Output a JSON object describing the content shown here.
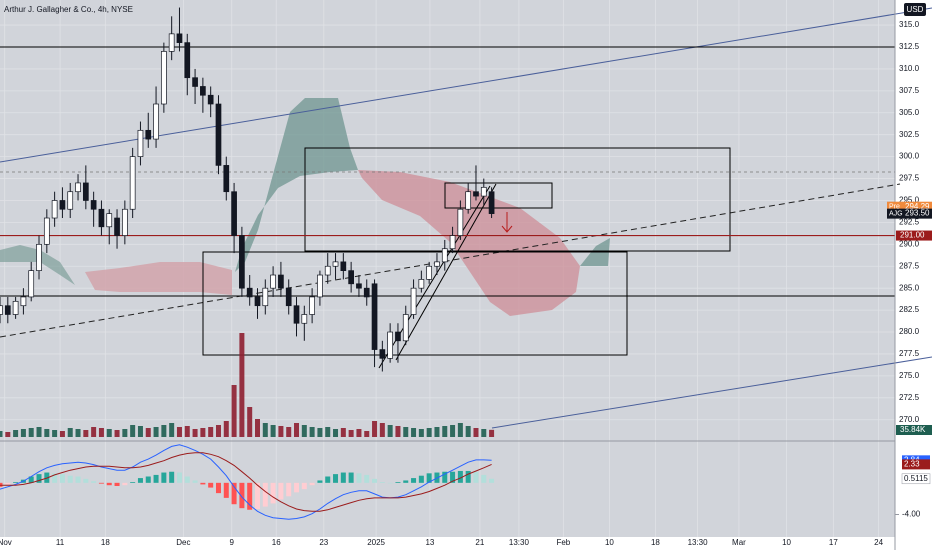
{
  "chart_data": {
    "type": "candlestick",
    "title": "Arthur J. Gallagher & Co., 4h, NYSE",
    "currency": "USD",
    "up_color": "#ffffff",
    "down_color": "#131722",
    "open": [
      282,
      283,
      282,
      283,
      284,
      287,
      290,
      293,
      295,
      294,
      296,
      297,
      295,
      294,
      292,
      293,
      291,
      294,
      300,
      303,
      302,
      306,
      312,
      314,
      313,
      309,
      308,
      307,
      306,
      299,
      296,
      291,
      285,
      284,
      283,
      285,
      286.5,
      285,
      283,
      281,
      282,
      284,
      286.5,
      287.5,
      288,
      287,
      285.5,
      285,
      285.5,
      278,
      277,
      280,
      279,
      282,
      285,
      286,
      287.5,
      288,
      289.5,
      291,
      294,
      296,
      295.5,
      296
    ],
    "high": [
      284,
      284,
      284,
      285,
      288,
      291,
      294,
      296,
      296.5,
      297,
      298,
      299,
      296,
      295,
      294,
      294,
      295,
      301,
      304,
      305,
      308,
      313,
      316,
      317,
      314,
      310,
      309,
      308,
      307,
      300,
      297,
      292,
      286.5,
      285,
      286,
      287.5,
      288,
      286,
      284,
      283,
      285,
      287,
      289,
      289,
      289,
      288,
      286.5,
      286,
      286,
      279,
      281,
      281,
      283,
      286,
      287,
      288,
      289,
      290.5,
      292,
      295,
      297,
      299,
      297.5,
      296.5
    ],
    "low": [
      281,
      281,
      281.5,
      282,
      283.5,
      286,
      289,
      292,
      293,
      293,
      295,
      294,
      292,
      291,
      290,
      289.5,
      290,
      293,
      299,
      301,
      301,
      305,
      311,
      312,
      307,
      306,
      305,
      304.5,
      298,
      295,
      289,
      284,
      283,
      281.5,
      282,
      284,
      284,
      282,
      279.5,
      279,
      281,
      283,
      285.5,
      286,
      286,
      284.5,
      284,
      283,
      276,
      275.5,
      276.5,
      276.5,
      278.5,
      281.5,
      284.5,
      285.5,
      286.5,
      287,
      289,
      290.5,
      293.5,
      295,
      294.5,
      293
    ],
    "close": [
      283,
      282,
      283.5,
      284,
      287,
      290,
      293,
      295,
      294,
      296,
      297,
      295,
      294,
      292,
      293.5,
      291,
      294,
      300,
      303,
      302,
      306,
      312,
      314,
      313,
      309,
      308,
      307,
      306,
      299,
      296,
      291,
      285,
      284,
      283,
      285,
      286.5,
      285,
      283,
      281,
      282,
      284,
      286.5,
      287.5,
      288,
      287,
      285.5,
      285,
      284,
      278,
      277,
      280,
      279,
      282,
      285,
      286,
      287.5,
      288,
      289.5,
      291,
      294,
      296,
      295.5,
      296.5,
      293.5
    ],
    "volume": [
      30,
      25,
      35,
      40,
      45,
      50,
      40,
      35,
      30,
      45,
      40,
      35,
      50,
      45,
      40,
      35,
      40,
      60,
      55,
      45,
      50,
      60,
      70,
      50,
      55,
      40,
      45,
      50,
      60,
      80,
      260,
      520,
      150,
      90,
      70,
      60,
      55,
      50,
      70,
      60,
      50,
      45,
      50,
      40,
      45,
      35,
      40,
      30,
      80,
      70,
      60,
      55,
      50,
      45,
      40,
      45,
      50,
      55,
      60,
      70,
      55,
      45,
      40,
      35.84
    ],
    "volume_label": "35.84K",
    "volume_ylim": [
      0,
      600
    ],
    "volume_up_color": "#1e5e50",
    "volume_down_color": "#8e1f30",
    "xlim": [
      0,
      114.7
    ],
    "xticks": [
      {
        "value": 0.6,
        "label": "Nov"
      },
      {
        "value": 7.7,
        "label": "11"
      },
      {
        "value": 13.5,
        "label": "18"
      },
      {
        "value": 23.5,
        "label": "Dec"
      },
      {
        "value": 29.7,
        "label": "9"
      },
      {
        "value": 35.4,
        "label": "16"
      },
      {
        "value": 41.5,
        "label": "23"
      },
      {
        "value": 48.2,
        "label": "2025"
      },
      {
        "value": 55.1,
        "label": "13"
      },
      {
        "value": 61.5,
        "label": "21"
      },
      {
        "value": 66.5,
        "label": "13:30"
      },
      {
        "value": 72.2,
        "label": "Feb"
      },
      {
        "value": 78.1,
        "label": "10"
      },
      {
        "value": 84,
        "label": "18"
      },
      {
        "value": 89.4,
        "label": "13:30"
      },
      {
        "value": 94.7,
        "label": "Mar"
      },
      {
        "value": 100.8,
        "label": "10"
      },
      {
        "value": 106.8,
        "label": "17"
      },
      {
        "value": 112.6,
        "label": "24"
      }
    ],
    "ylim": [
      268.03,
      317.86
    ],
    "yticks": [
      {
        "value": 270,
        "label": "270.0"
      },
      {
        "value": 272.5,
        "label": "272.5"
      },
      {
        "value": 275,
        "label": "275.0"
      },
      {
        "value": 277.5,
        "label": "277.5"
      },
      {
        "value": 280,
        "label": "280.0"
      },
      {
        "value": 282.5,
        "label": "282.5"
      },
      {
        "value": 285,
        "label": "285.0"
      },
      {
        "value": 287.5,
        "label": "287.5"
      },
      {
        "value": 290,
        "label": "290.0"
      },
      {
        "value": 292.5,
        "label": "292.5"
      },
      {
        "value": 295,
        "label": "295.0"
      },
      {
        "value": 297.5,
        "label": "297.5"
      },
      {
        "value": 300,
        "label": "300.0"
      },
      {
        "value": 302.5,
        "label": "302.5"
      },
      {
        "value": 305,
        "label": "305.0"
      },
      {
        "value": 307.5,
        "label": "307.5"
      },
      {
        "value": 310,
        "label": "310.0"
      },
      {
        "value": 312.5,
        "label": "312.5"
      },
      {
        "value": 315,
        "label": "315.0"
      }
    ],
    "grid": true,
    "level": {
      "value": 291,
      "label": "291.00",
      "color": "#9b1c1c"
    },
    "price_tags": [
      {
        "name": "Pre",
        "value": 294.29,
        "color": "#f08a3c"
      },
      {
        "name": "AJG",
        "value": 293.5,
        "label": "293.50",
        "color": "#131722"
      }
    ],
    "macd": {
      "macd": [
        -0.8,
        -0.5,
        -0.2,
        0.2,
        0.8,
        1.4,
        1.9,
        2.2,
        2.4,
        2.5,
        2.6,
        2.5,
        2.3,
        2.0,
        1.8,
        1.6,
        1.6,
        2.0,
        2.6,
        3.0,
        3.5,
        4.1,
        4.6,
        4.8,
        4.5,
        4.1,
        3.6,
        3.0,
        2.0,
        0.9,
        -0.5,
        -1.8,
        -2.8,
        -3.6,
        -4.1,
        -4.4,
        -4.5,
        -4.6,
        -4.5,
        -4.3,
        -3.9,
        -3.3,
        -2.6,
        -2.0,
        -1.5,
        -1.2,
        -1.0,
        -1.0,
        -1.4,
        -1.8,
        -1.9,
        -1.8,
        -1.5,
        -1.0,
        -0.5,
        0.1,
        0.6,
        1.1,
        1.6,
        2.1,
        2.6,
        2.9,
        2.9,
        2.84
      ],
      "signal": [
        -0.3,
        -0.3,
        -0.3,
        -0.2,
        0,
        0.3,
        0.6,
        1.0,
        1.3,
        1.6,
        1.8,
        2.0,
        2.1,
        2.1,
        2.1,
        2.0,
        1.9,
        1.9,
        2.0,
        2.2,
        2.5,
        2.8,
        3.2,
        3.5,
        3.7,
        3.8,
        3.8,
        3.6,
        3.3,
        2.8,
        2.2,
        1.4,
        0.6,
        -0.3,
        -1.1,
        -1.8,
        -2.4,
        -2.9,
        -3.3,
        -3.5,
        -3.6,
        -3.6,
        -3.4,
        -3.1,
        -2.8,
        -2.5,
        -2.2,
        -2.0,
        -1.9,
        -1.9,
        -1.9,
        -1.9,
        -1.8,
        -1.6,
        -1.4,
        -1.1,
        -0.7,
        -0.3,
        0.2,
        0.6,
        1.1,
        1.5,
        1.9,
        2.33
      ],
      "histogram": [
        -0.5,
        -0.2,
        0.1,
        0.4,
        0.8,
        1.1,
        1.3,
        1.2,
        1.1,
        0.9,
        0.8,
        0.5,
        0.2,
        -0.1,
        -0.3,
        -0.4,
        -0.3,
        0.1,
        0.6,
        0.8,
        1.0,
        1.3,
        1.4,
        1.3,
        0.8,
        0.3,
        -0.2,
        -0.6,
        -1.3,
        -1.9,
        -2.7,
        -3.2,
        -3.4,
        -3.3,
        -3.0,
        -2.6,
        -2.1,
        -1.7,
        -1.2,
        -0.8,
        -0.3,
        0.3,
        0.8,
        1.1,
        1.3,
        1.3,
        1.2,
        1.0,
        0.5,
        0.1,
        0.0,
        0.1,
        0.3,
        0.6,
        0.9,
        1.2,
        1.3,
        1.4,
        1.4,
        1.5,
        1.5,
        1.4,
        1.0,
        0.5115
      ],
      "macd_color": "#2962ff",
      "signal_color": "#9b1c1c",
      "colors": {
        "pos_up": "#26a69a",
        "pos_down": "#b2dfdb",
        "neg_down": "#ff5252",
        "neg_up": "#ffcdd2"
      },
      "ylim": [
        -6.84,
        5.03
      ],
      "yticks": [
        {
          "value": -4,
          "label": "-4.00"
        }
      ]
    }
  }
}
